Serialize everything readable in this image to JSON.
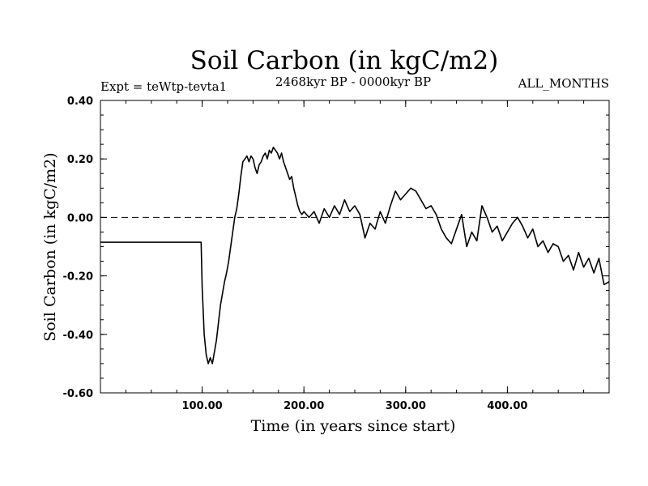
{
  "chart_data": {
    "type": "line",
    "title": "Soil Carbon (in kgC/m2)",
    "subtitle_left": "Expt = teWtp-tevta1",
    "subtitle_center": "2468kyr BP - 0000kyr BP",
    "subtitle_right": "ALL_MONTHS",
    "xlabel": "Time (in years since start)",
    "ylabel": "Soil Carbon (in kgC/m2)",
    "xlim": [
      0,
      500
    ],
    "ylim": [
      -0.6,
      0.4
    ],
    "x_ticks": [
      100,
      200,
      300,
      400
    ],
    "x_tick_labels": [
      "100.00",
      "200.00",
      "300.00",
      "400.00"
    ],
    "y_ticks": [
      -0.6,
      -0.4,
      -0.2,
      0.0,
      0.2,
      0.4
    ],
    "y_tick_labels": [
      "-0.60",
      "-0.40",
      "-0.20",
      "0.00",
      "0.20",
      "0.40"
    ],
    "reference_line": {
      "y": 0.0,
      "style": "dashed"
    },
    "series": [
      {
        "name": "Soil Carbon",
        "x": [
          0,
          99,
          100,
          102,
          104,
          106,
          108,
          110,
          112,
          114,
          116,
          118,
          120,
          122,
          124,
          126,
          128,
          130,
          132,
          134,
          136,
          138,
          140,
          142,
          144,
          146,
          148,
          150,
          152,
          154,
          156,
          158,
          160,
          162,
          164,
          166,
          168,
          170,
          172,
          174,
          176,
          178,
          180,
          182,
          184,
          186,
          188,
          190,
          192,
          194,
          196,
          198,
          200,
          205,
          210,
          215,
          220,
          225,
          230,
          235,
          240,
          245,
          250,
          255,
          260,
          265,
          270,
          275,
          280,
          285,
          290,
          295,
          300,
          305,
          310,
          315,
          320,
          325,
          330,
          335,
          340,
          345,
          350,
          355,
          360,
          365,
          370,
          375,
          380,
          385,
          390,
          395,
          400,
          405,
          410,
          415,
          420,
          425,
          430,
          435,
          440,
          445,
          450,
          455,
          460,
          465,
          470,
          475,
          480,
          485,
          490,
          495,
          500
        ],
        "values": [
          -0.085,
          -0.085,
          -0.24,
          -0.4,
          -0.47,
          -0.5,
          -0.48,
          -0.5,
          -0.46,
          -0.42,
          -0.36,
          -0.3,
          -0.26,
          -0.22,
          -0.19,
          -0.15,
          -0.1,
          -0.05,
          0.0,
          0.03,
          0.08,
          0.14,
          0.19,
          0.2,
          0.21,
          0.19,
          0.21,
          0.2,
          0.17,
          0.15,
          0.18,
          0.19,
          0.21,
          0.22,
          0.2,
          0.23,
          0.22,
          0.24,
          0.23,
          0.22,
          0.2,
          0.22,
          0.19,
          0.17,
          0.15,
          0.13,
          0.14,
          0.1,
          0.07,
          0.04,
          0.02,
          0.01,
          0.02,
          0.0,
          0.02,
          -0.02,
          0.03,
          0.0,
          0.04,
          0.01,
          0.06,
          0.02,
          0.04,
          0.01,
          -0.07,
          -0.02,
          -0.04,
          0.02,
          -0.02,
          0.04,
          0.09,
          0.06,
          0.08,
          0.1,
          0.09,
          0.06,
          0.03,
          0.04,
          0.01,
          -0.04,
          -0.07,
          -0.09,
          -0.04,
          0.01,
          -0.1,
          -0.05,
          -0.08,
          0.04,
          0.0,
          -0.05,
          -0.03,
          -0.08,
          -0.05,
          -0.02,
          0.0,
          -0.03,
          -0.07,
          -0.04,
          -0.1,
          -0.08,
          -0.12,
          -0.09,
          -0.1,
          -0.15,
          -0.13,
          -0.18,
          -0.12,
          -0.17,
          -0.14,
          -0.19,
          -0.14,
          -0.23,
          -0.22
        ]
      }
    ]
  }
}
